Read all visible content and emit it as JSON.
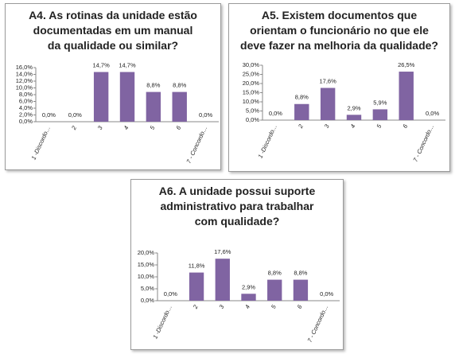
{
  "chart_data": [
    {
      "type": "bar",
      "title": "A4. As rotinas da  unidade  estão documentadas em um manual da qualidade ou similar?",
      "categories": [
        "1 -Discordo…",
        "2",
        "3",
        "4",
        "5",
        "6",
        "7 - Concordo…"
      ],
      "values": [
        0,
        0,
        14.7,
        14.7,
        8.8,
        8.8,
        0
      ],
      "value_labels": [
        "0,0%",
        "0,0%",
        "14,7%",
        "14,7%",
        "8,8%",
        "8,8%",
        "0,0%"
      ],
      "color": "#8064a2",
      "ylim": [
        0,
        16
      ],
      "yticks": [
        {
          "value": 0,
          "label": "0,0%"
        },
        {
          "value": 2,
          "label": "2,0%"
        },
        {
          "value": 4,
          "label": "4,0%"
        },
        {
          "value": 6,
          "label": "6,0%"
        },
        {
          "value": 8,
          "label": "8,0%"
        },
        {
          "value": 10,
          "label": "10,0%"
        },
        {
          "value": 12,
          "label": "12,0%"
        },
        {
          "value": 14,
          "label": "14,0%"
        },
        {
          "value": 16,
          "label": "16,0%"
        }
      ]
    },
    {
      "type": "bar",
      "title": "A5. Existem documentos que orientam o funcionário no que ele deve fazer na melhoria da qualidade?",
      "categories": [
        "1 -Discordo…",
        "2",
        "3",
        "4",
        "5",
        "6",
        "7 - Concordo…"
      ],
      "values": [
        0,
        8.8,
        17.6,
        2.9,
        5.9,
        26.5,
        0
      ],
      "value_labels": [
        "0,0%",
        "8,8%",
        "17,6%",
        "2,9%",
        "5,9%",
        "26,5%",
        "0,0%"
      ],
      "color": "#8064a2",
      "ylim": [
        0,
        30
      ],
      "yticks": [
        {
          "value": 0,
          "label": "0,0%"
        },
        {
          "value": 5,
          "label": "5,0%"
        },
        {
          "value": 10,
          "label": "10,0%"
        },
        {
          "value": 15,
          "label": "15,0%"
        },
        {
          "value": 20,
          "label": "20,0%"
        },
        {
          "value": 25,
          "label": "25,0%"
        },
        {
          "value": 30,
          "label": "30,0%"
        }
      ]
    },
    {
      "type": "bar",
      "title": "A6. A  unidade  possui suporte administrativo para trabalhar com qualidade?",
      "categories": [
        "1 -Discordo…",
        "2",
        "3",
        "4",
        "5",
        "6",
        "7 - Concordo…"
      ],
      "values": [
        0,
        11.8,
        17.6,
        2.9,
        8.8,
        8.8,
        0
      ],
      "value_labels": [
        "0,0%",
        "11,8%",
        "17,6%",
        "2,9%",
        "8,8%",
        "8,8%",
        "0,0%"
      ],
      "color": "#8064a2",
      "ylim": [
        0,
        20
      ],
      "yticks": [
        {
          "value": 0,
          "label": "0,0%"
        },
        {
          "value": 5,
          "label": "5,0%"
        },
        {
          "value": 10,
          "label": "10,0%"
        },
        {
          "value": 15,
          "label": "15,0%"
        },
        {
          "value": 20,
          "label": "20,0%"
        }
      ]
    }
  ]
}
